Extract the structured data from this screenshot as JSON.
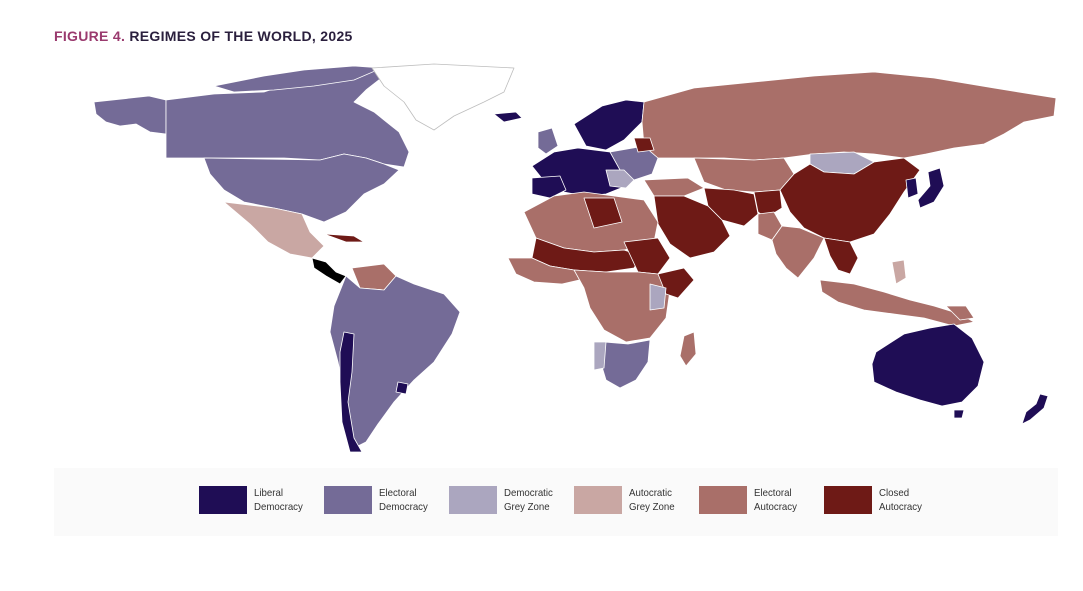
{
  "figure": {
    "label": "FIGURE 4.",
    "title": "REGIMES OF THE WORLD, 2025"
  },
  "colors": {
    "liberal_democracy": "#1f0d55",
    "electoral_democracy": "#746b97",
    "democratic_grey_zone": "#aba6bf",
    "autocratic_grey_zone": "#c9a7a3",
    "electoral_autocracy": "#a96f69",
    "closed_autocracy": "#6e1a16",
    "no_data": "#ffffff"
  },
  "legend": [
    {
      "key": "liberal_democracy",
      "label": "Liberal\nDemocracy",
      "color": "#1f0d55"
    },
    {
      "key": "electoral_democracy",
      "label": "Electoral\nDemocracy",
      "color": "#746b97"
    },
    {
      "key": "democratic_grey_zone",
      "label": "Democratic\nGrey Zone",
      "color": "#aba6bf"
    },
    {
      "key": "autocratic_grey_zone",
      "label": "Autocratic\nGrey Zone",
      "color": "#c9a7a3"
    },
    {
      "key": "electoral_autocracy",
      "label": "Electoral\nAutocracy",
      "color": "#a96f69"
    },
    {
      "key": "closed_autocracy",
      "label": "Closed\nAutocracy",
      "color": "#6e1a16"
    }
  ]
}
